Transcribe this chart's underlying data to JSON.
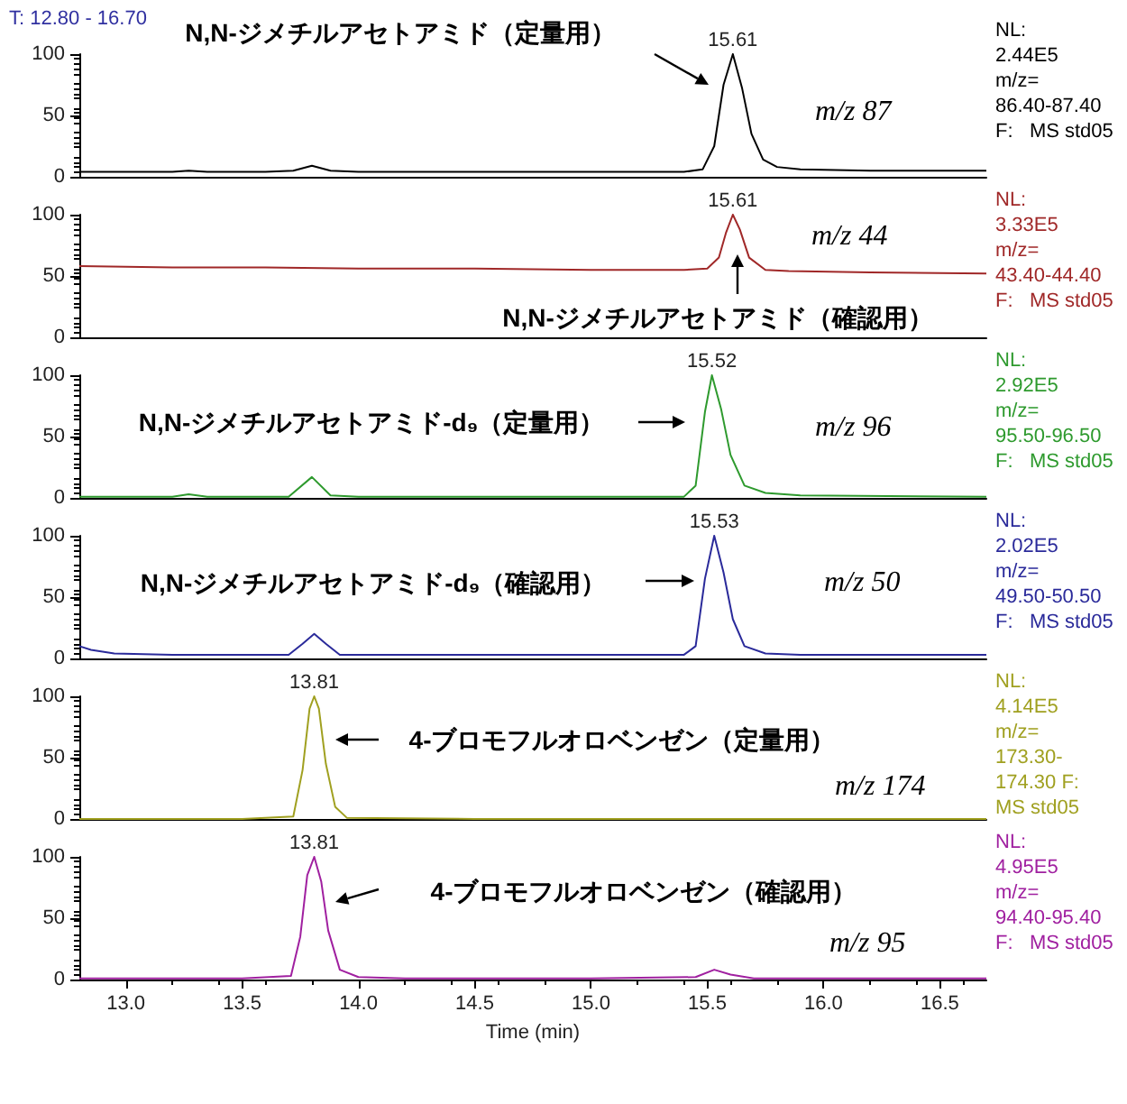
{
  "chart_data": [
    {
      "type": "line",
      "title": "T: 12.80 - 16.70",
      "xlim": [
        12.8,
        16.7
      ],
      "ylim": [
        0,
        100
      ],
      "yticks": [
        0,
        50,
        100
      ],
      "tick_labels": "y",
      "color": "#000000",
      "x": [
        12.8,
        13.0,
        13.2,
        13.27,
        13.35,
        13.6,
        13.72,
        13.8,
        13.88,
        14.0,
        14.5,
        15.0,
        15.4,
        15.48,
        15.53,
        15.57,
        15.61,
        15.65,
        15.69,
        15.74,
        15.8,
        15.9,
        16.2,
        16.5,
        16.7
      ],
      "values": [
        4,
        4,
        4,
        5,
        4,
        4,
        5,
        9,
        5,
        4,
        4,
        4,
        4,
        6,
        25,
        75,
        100,
        72,
        35,
        14,
        8,
        6,
        5,
        5,
        5
      ],
      "annotations": [
        {
          "text": "15.61",
          "x": 15.61,
          "y": 100
        },
        "N,N-ジメチルアセトアミド（定量用）",
        "m/z 87",
        "NL:\n2.44E5\nm/z=\n86.40-87.40\nF:   MS std05"
      ]
    },
    {
      "type": "line",
      "xlim": [
        12.8,
        16.7
      ],
      "ylim": [
        0,
        100
      ],
      "yticks": [
        0,
        50,
        100
      ],
      "tick_labels": "y",
      "color": "#a02828",
      "x": [
        12.8,
        13.2,
        13.6,
        14.0,
        14.5,
        15.0,
        15.4,
        15.5,
        15.55,
        15.58,
        15.61,
        15.64,
        15.68,
        15.75,
        15.85,
        16.2,
        16.7
      ],
      "values": [
        58,
        57,
        57,
        56,
        56,
        55,
        55,
        56,
        65,
        85,
        100,
        88,
        65,
        55,
        54,
        53,
        52
      ],
      "annotations": [
        {
          "text": "15.61",
          "x": 15.61,
          "y": 100
        },
        "N,N-ジメチルアセトアミド（確認用）",
        "m/z 44",
        "NL:\n3.33E5\nm/z=\n43.40-44.40\nF:   MS std05"
      ]
    },
    {
      "type": "line",
      "xlim": [
        12.8,
        16.7
      ],
      "ylim": [
        0,
        100
      ],
      "yticks": [
        0,
        50,
        100
      ],
      "tick_labels": "y",
      "color": "#2e9a2e",
      "x": [
        12.8,
        13.2,
        13.27,
        13.35,
        13.7,
        13.8,
        13.88,
        14.0,
        15.0,
        15.4,
        15.45,
        15.49,
        15.52,
        15.56,
        15.6,
        15.66,
        15.75,
        15.9,
        16.7
      ],
      "values": [
        1,
        1,
        3,
        1,
        1,
        17,
        2,
        1,
        1,
        1,
        10,
        70,
        100,
        72,
        35,
        10,
        4,
        2,
        1
      ],
      "annotations": [
        {
          "text": "15.52",
          "x": 15.52,
          "y": 100
        },
        "N,N-ジメチルアセトアミド-d₉（定量用）",
        "m/z 96",
        "NL:\n2.92E5\nm/z=\n95.50-96.50\nF:   MS std05"
      ]
    },
    {
      "type": "line",
      "xlim": [
        12.8,
        16.7
      ],
      "ylim": [
        0,
        100
      ],
      "yticks": [
        0,
        50,
        100
      ],
      "tick_labels": "y",
      "color": "#2a2a9a",
      "x": [
        12.8,
        12.85,
        12.95,
        13.2,
        13.7,
        13.76,
        13.81,
        13.86,
        13.92,
        14.5,
        15.0,
        15.4,
        15.45,
        15.49,
        15.53,
        15.57,
        15.61,
        15.66,
        15.75,
        15.9,
        16.7
      ],
      "values": [
        10,
        7,
        4,
        3,
        3,
        12,
        20,
        12,
        3,
        3,
        3,
        3,
        10,
        65,
        100,
        70,
        32,
        10,
        4,
        3,
        3
      ],
      "annotations": [
        {
          "text": "15.53",
          "x": 15.53,
          "y": 100
        },
        "N,N-ジメチルアセトアミド-d₉（確認用）",
        "m/z 50",
        "NL:\n2.02E5\nm/z=\n49.50-50.50\nF:   MS std05"
      ]
    },
    {
      "type": "line",
      "xlim": [
        12.8,
        16.7
      ],
      "ylim": [
        0,
        100
      ],
      "yticks": [
        0,
        50,
        100
      ],
      "tick_labels": "y",
      "color": "#a0a020",
      "x": [
        12.8,
        13.5,
        13.72,
        13.76,
        13.79,
        13.81,
        13.83,
        13.86,
        13.9,
        13.95,
        14.5,
        15.5,
        16.7
      ],
      "values": [
        0,
        0,
        2,
        40,
        90,
        100,
        90,
        45,
        10,
        1,
        0,
        0,
        0
      ],
      "annotations": [
        {
          "text": "13.81",
          "x": 13.81,
          "y": 100
        },
        "4-ブロモフルオロベンゼン（定量用）",
        "m/z 174",
        "NL:\n4.14E5\nm/z=\n173.30-\n174.30 F:\nMS std05"
      ]
    },
    {
      "type": "line",
      "xlim": [
        12.8,
        16.7
      ],
      "xticks": [
        {
          "value": 13,
          "label": "13.0"
        },
        {
          "value": 13.5,
          "label": "13.5"
        },
        {
          "value": 14,
          "label": "14.0"
        },
        {
          "value": 14.5,
          "label": "14.5"
        },
        {
          "value": 15,
          "label": "15.0"
        },
        {
          "value": 15.5,
          "label": "15.5"
        },
        {
          "value": 16,
          "label": "16.0"
        },
        {
          "value": 16.5,
          "label": "16.5"
        }
      ],
      "ylim": [
        0,
        100
      ],
      "yticks": [
        0,
        50,
        100
      ],
      "xlabel": "Time (min)",
      "color": "#a020a0",
      "x": [
        12.8,
        13.5,
        13.71,
        13.75,
        13.78,
        13.81,
        13.84,
        13.87,
        13.92,
        14.0,
        14.2,
        15.0,
        15.45,
        15.53,
        15.6,
        15.7,
        16.7
      ],
      "values": [
        1,
        1,
        3,
        35,
        85,
        100,
        80,
        40,
        8,
        2,
        1,
        1,
        2,
        8,
        4,
        1,
        1
      ],
      "annotations": [
        {
          "text": "13.81",
          "x": 13.81,
          "y": 100
        },
        "4-ブロモフルオロベンゼン（確認用）",
        "m/z 95",
        "NL:\n4.95E5\nm/z=\n94.40-95.40\nF:   MS std05"
      ]
    }
  ]
}
